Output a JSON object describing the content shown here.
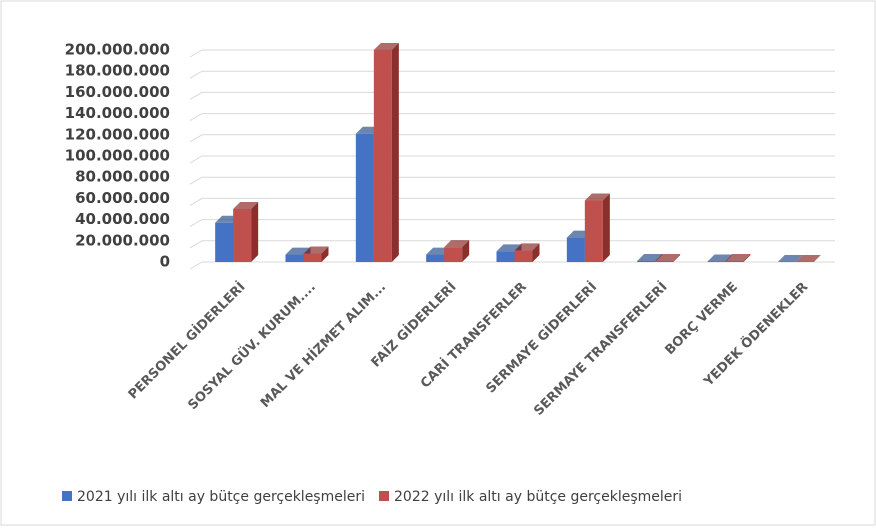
{
  "chart_data": {
    "type": "bar3d",
    "categories": [
      "PERSONEL GİDERLERİ",
      "SOSYAL GÜV. KURUM....",
      "MAL VE HİZMET ALIM...",
      "FAİZ GİDERLERİ",
      "CARİ TRANSFERLER",
      "SERMAYE GİDERLERİ",
      "SERMAYE TRANSFERLERİ",
      "BORÇ VERME",
      "YEDEK ÖDENEKLER"
    ],
    "series": [
      {
        "name": "2021 yılı ilk altı ay bütçe gerçekleşmeleri",
        "color": "#4472c4",
        "side": "#2f528f",
        "values": [
          37000000,
          7000000,
          121000000,
          7000000,
          10000000,
          23000000,
          1000000,
          500000,
          0
        ]
      },
      {
        "name": "2022 yılı ilk altı ay bütçe gerçekleşmeleri",
        "color": "#c0504d",
        "side": "#8b2f2c",
        "values": [
          50000000,
          8000000,
          200000000,
          14000000,
          11000000,
          58000000,
          1000000,
          1000000,
          0
        ]
      }
    ],
    "ylim": [
      0,
      200000000
    ],
    "yticks": [
      0,
      {
        "value": 20000000,
        "label": "20.000.000"
      },
      {
        "value": 40000000,
        "label": "40.000.000"
      },
      {
        "value": 60000000,
        "label": "60.000.000"
      },
      {
        "value": 80000000,
        "label": "80.000.000"
      },
      {
        "value": 100000000,
        "label": "100.000.000"
      },
      {
        "value": 120000000,
        "label": "120.000.000"
      },
      {
        "value": 140000000,
        "label": "140.000.000"
      },
      {
        "value": 160000000,
        "label": "160.000.000"
      },
      {
        "value": 180000000,
        "label": "180.000.000"
      },
      {
        "value": 200000000,
        "label": "200.000.000"
      }
    ],
    "grid": true,
    "legend": "bottom"
  }
}
